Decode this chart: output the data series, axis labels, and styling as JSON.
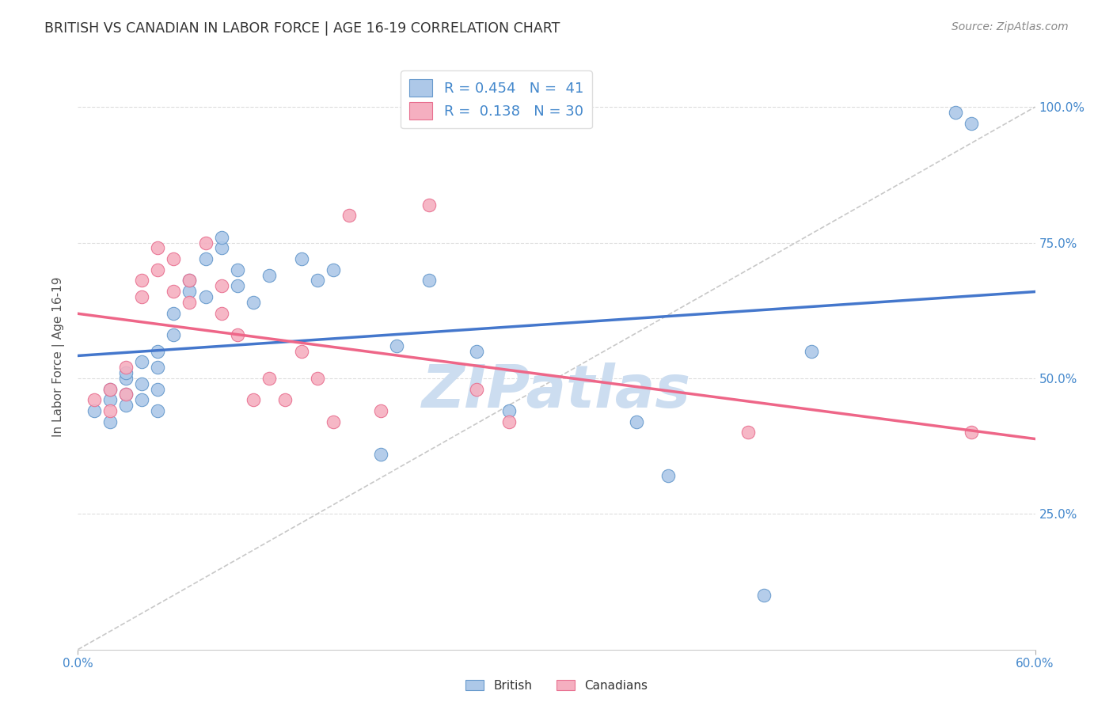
{
  "title": "BRITISH VS CANADIAN IN LABOR FORCE | AGE 16-19 CORRELATION CHART",
  "source": "Source: ZipAtlas.com",
  "ylabel": "In Labor Force | Age 16-19",
  "ylabel_ticks_right": [
    "100.0%",
    "75.0%",
    "50.0%",
    "25.0%"
  ],
  "ylabel_vals_right": [
    1.0,
    0.75,
    0.5,
    0.25
  ],
  "xlim": [
    0.0,
    0.6
  ],
  "ylim": [
    0.0,
    1.08
  ],
  "british_R": 0.454,
  "british_N": 41,
  "canadian_R": 0.138,
  "canadian_N": 30,
  "british_color": "#adc8e8",
  "canadian_color": "#f5afc0",
  "british_edge_color": "#6699cc",
  "canadian_edge_color": "#e87090",
  "british_line_color": "#4477cc",
  "canadian_line_color": "#ee6688",
  "ref_line_color": "#bbbbbb",
  "watermark_color": "#ccddf0",
  "watermark_text": "ZIPatlas",
  "background_color": "#ffffff",
  "grid_color": "#dddddd",
  "title_color": "#333333",
  "axis_label_color": "#4488cc",
  "british_x": [
    0.01,
    0.02,
    0.02,
    0.02,
    0.03,
    0.03,
    0.03,
    0.03,
    0.04,
    0.04,
    0.04,
    0.05,
    0.05,
    0.05,
    0.05,
    0.06,
    0.06,
    0.07,
    0.07,
    0.08,
    0.08,
    0.09,
    0.09,
    0.1,
    0.1,
    0.11,
    0.12,
    0.14,
    0.15,
    0.16,
    0.19,
    0.2,
    0.22,
    0.25,
    0.27,
    0.35,
    0.37,
    0.43,
    0.46,
    0.55,
    0.56
  ],
  "british_y": [
    0.44,
    0.46,
    0.42,
    0.48,
    0.5,
    0.47,
    0.45,
    0.51,
    0.53,
    0.49,
    0.46,
    0.55,
    0.52,
    0.48,
    0.44,
    0.58,
    0.62,
    0.66,
    0.68,
    0.65,
    0.72,
    0.74,
    0.76,
    0.67,
    0.7,
    0.64,
    0.69,
    0.72,
    0.68,
    0.7,
    0.36,
    0.56,
    0.68,
    0.55,
    0.44,
    0.42,
    0.32,
    0.1,
    0.55,
    0.99,
    0.97
  ],
  "canadian_x": [
    0.01,
    0.02,
    0.02,
    0.03,
    0.03,
    0.04,
    0.04,
    0.05,
    0.05,
    0.06,
    0.06,
    0.07,
    0.07,
    0.08,
    0.09,
    0.09,
    0.1,
    0.11,
    0.12,
    0.13,
    0.14,
    0.15,
    0.16,
    0.17,
    0.19,
    0.22,
    0.25,
    0.27,
    0.42,
    0.56
  ],
  "canadian_y": [
    0.46,
    0.48,
    0.44,
    0.52,
    0.47,
    0.65,
    0.68,
    0.7,
    0.74,
    0.66,
    0.72,
    0.68,
    0.64,
    0.75,
    0.67,
    0.62,
    0.58,
    0.46,
    0.5,
    0.46,
    0.55,
    0.5,
    0.42,
    0.8,
    0.44,
    0.82,
    0.48,
    0.42,
    0.4,
    0.4
  ]
}
